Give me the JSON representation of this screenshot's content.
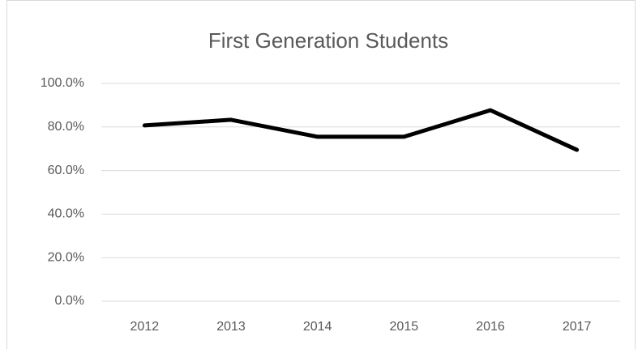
{
  "chart_data": {
    "type": "line",
    "title": "First Generation Students",
    "categories": [
      "2012",
      "2013",
      "2014",
      "2015",
      "2016",
      "2017"
    ],
    "series": [
      {
        "color": "#000000",
        "values": [
          80.7,
          83.3,
          75.5,
          75.5,
          87.7,
          69.5
        ]
      }
    ],
    "ylim": [
      0,
      100
    ],
    "yticks": [
      {
        "value": 0,
        "label": "0.0%"
      },
      {
        "value": 20,
        "label": "20.0%"
      },
      {
        "value": 40,
        "label": "40.0%"
      },
      {
        "value": 60,
        "label": "60.0%"
      },
      {
        "value": 80,
        "label": "80.0%"
      },
      {
        "value": 100,
        "label": "100.0%"
      }
    ],
    "grid": true
  }
}
